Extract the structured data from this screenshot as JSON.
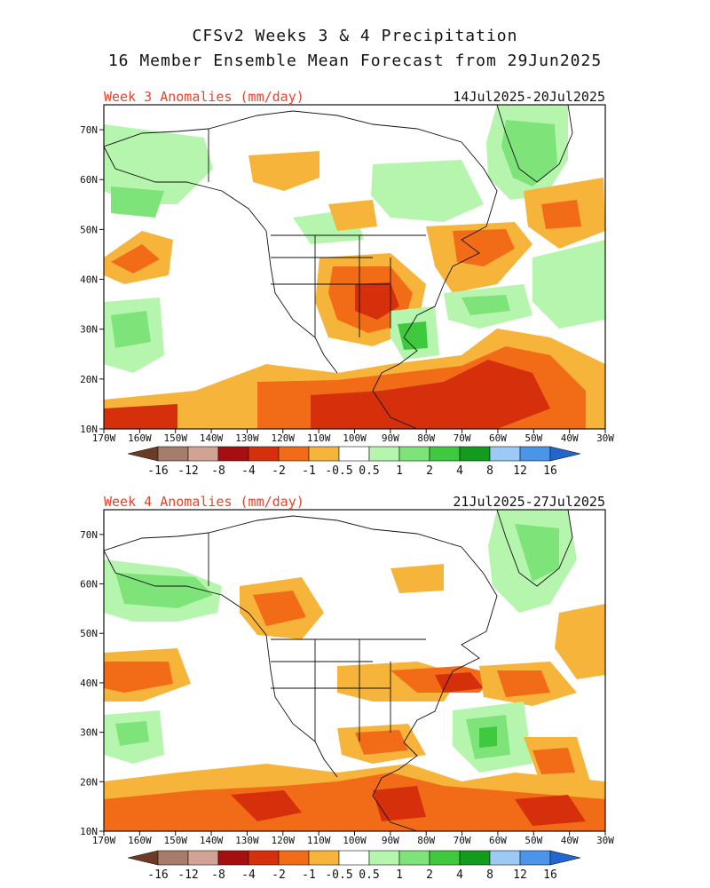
{
  "title": {
    "line1": "CFSv2 Weeks 3 & 4 Precipitation",
    "line2": "16 Member Ensemble Mean Forecast from 29Jun2025"
  },
  "panels": [
    {
      "label": "Week 3 Anomalies (mm/day)",
      "date_range": "14Jul2025-20Jul2025"
    },
    {
      "label": "Week 4 Anomalies (mm/day)",
      "date_range": "21Jul2025-27Jul2025"
    }
  ],
  "axes": {
    "lat_labels": [
      "70N",
      "60N",
      "50N",
      "40N",
      "30N",
      "20N",
      "10N"
    ],
    "lon_labels": [
      "170W",
      "160W",
      "150W",
      "140W",
      "130W",
      "120W",
      "110W",
      "100W",
      "90W",
      "80W",
      "70W",
      "60W",
      "50W",
      "40W",
      "30W"
    ]
  },
  "colorbar": {
    "labels": [
      "-16",
      "-12",
      "-8",
      "-4",
      "-2",
      "-1",
      "-0.5",
      "0.5",
      "1",
      "2",
      "4",
      "8",
      "12",
      "16"
    ],
    "colors": [
      "#6b3b26",
      "#a67c6b",
      "#d1a394",
      "#a50f0f",
      "#d62f0c",
      "#f26b16",
      "#f6b43b",
      "#ffffff",
      "#b5f5ae",
      "#7ee47a",
      "#3fc93f",
      "#139b1e",
      "#9ccaf5",
      "#4a94ea",
      "#2466d0"
    ],
    "colors_hex_doc": "brown/orange = drier than normal; greens/blues = wetter than normal"
  },
  "chart_data": {
    "type": "heatmap",
    "title": "CFSv2 Weeks 3 & 4 Precipitation",
    "lat_range": [
      10,
      75
    ],
    "lon_range": [
      -170,
      -30
    ],
    "units": "mm/day"
  }
}
